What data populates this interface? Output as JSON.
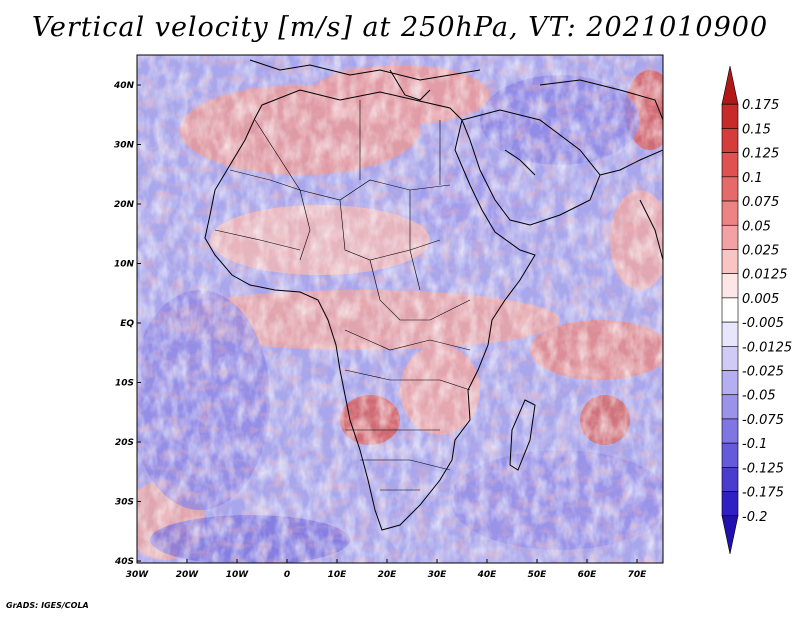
{
  "title": "Vertical velocity [m/s] at 250hPa, VT: 2021010900",
  "footer": "GrADS: IGES/COLA",
  "map": {
    "lat_ticks": [
      "40N",
      "30N",
      "20N",
      "10N",
      "EQ",
      "10S",
      "20S",
      "30S",
      "40S"
    ],
    "lon_ticks": [
      "30W",
      "20W",
      "10W",
      "0",
      "10E",
      "20E",
      "30E",
      "40E",
      "50E",
      "60E",
      "70E"
    ],
    "lon_range": [
      -30,
      75
    ],
    "lat_range": [
      -40,
      45
    ],
    "field": "vertical velocity",
    "level": "250hPa",
    "valid_time": "2021010900"
  },
  "colorbar": {
    "labels": [
      "0.175",
      "0.15",
      "0.125",
      "0.1",
      "0.075",
      "0.05",
      "0.025",
      "0.0125",
      "0.005",
      "-0.005",
      "-0.0125",
      "-0.025",
      "-0.05",
      "-0.075",
      "-0.1",
      "-0.125",
      "-0.175",
      "-0.2"
    ],
    "colors": [
      "#b01818",
      "#c62a2a",
      "#d53c3c",
      "#e05252",
      "#e66a6a",
      "#ec8484",
      "#f2a2a2",
      "#f8c4c4",
      "#fde6e6",
      "#ffffff",
      "#e8e6fb",
      "#cfcaf6",
      "#b5aef0",
      "#9b92ea",
      "#8076e2",
      "#655ad9",
      "#4a3ccf",
      "#3020c4",
      "#2010b0"
    ]
  }
}
